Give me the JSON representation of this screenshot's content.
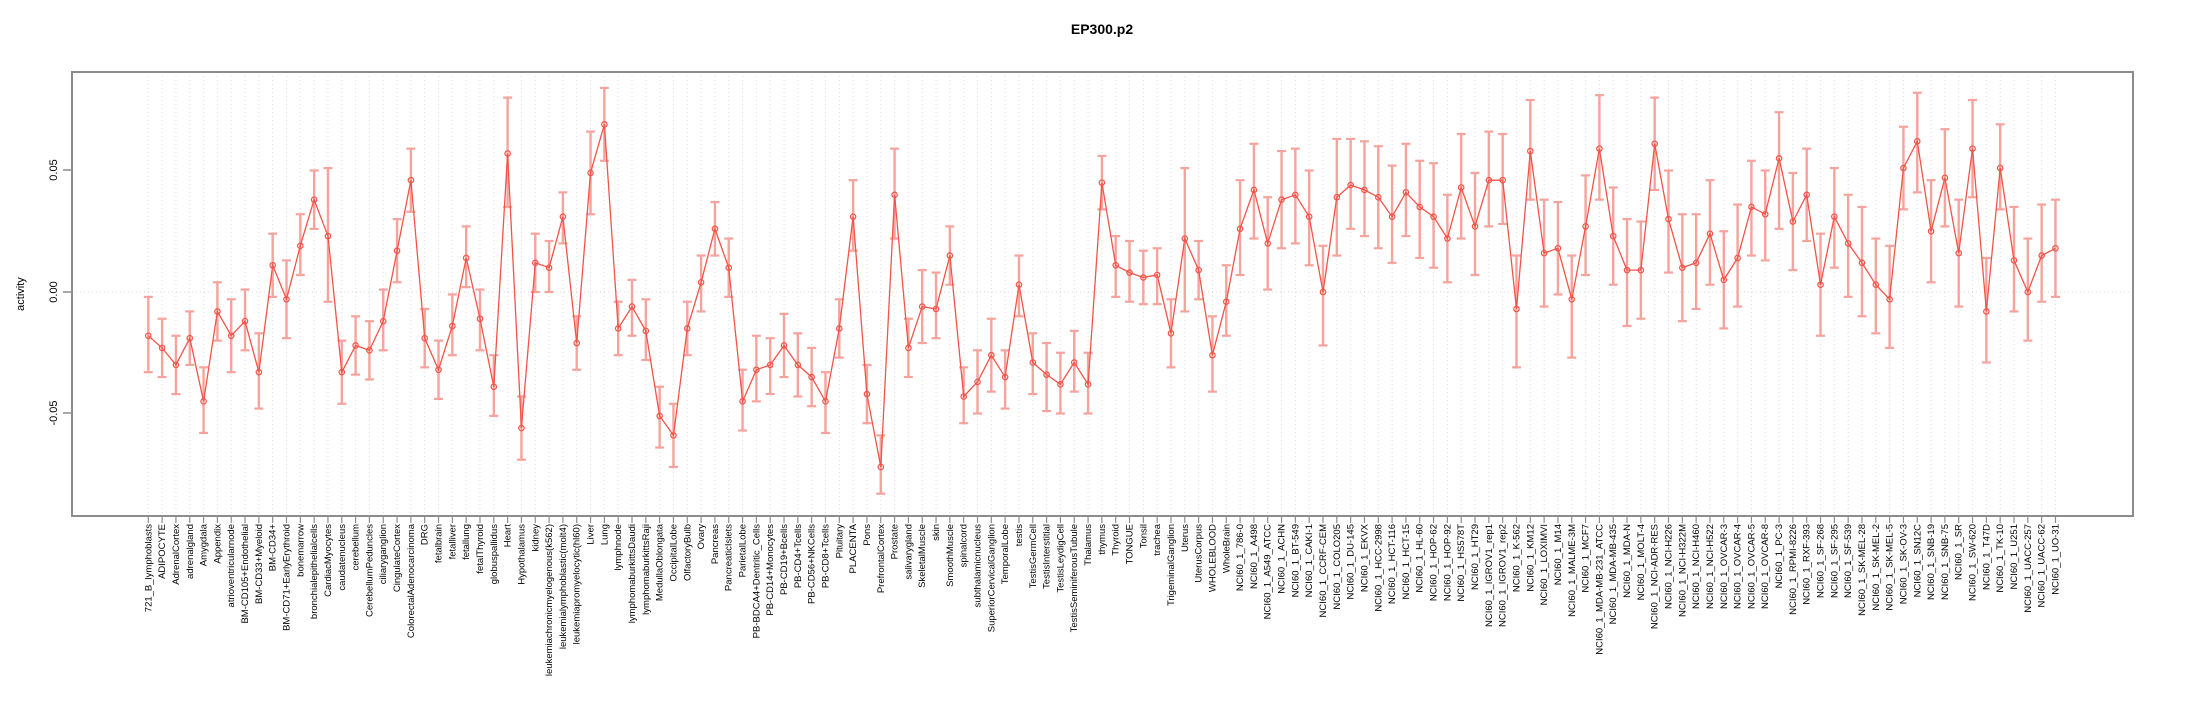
{
  "chart_data": {
    "type": "line",
    "title": "EP300.p2",
    "ylabel": "activity",
    "xlabel": "",
    "ylim": [
      -0.09,
      0.09
    ],
    "yticks": [
      -0.05,
      0.0,
      0.05
    ],
    "ytick_labels": [
      "-0.05",
      "0.00",
      "0.05"
    ],
    "grid": "vertical dashed gridline per category; dotted horizontal line at 0",
    "legend_position": "none",
    "series_color": "#f25449",
    "errorbar_color": "#f7a39d",
    "axis_color": "#8c8c8c",
    "gridline_color": "#dcdcdc",
    "categories": [
      "721_B_lymphoblasts",
      "ADIPOCYTE",
      "AdrenalCortex",
      "adrenalgland",
      "Amygdala",
      "Appendix",
      "atrioventricularnode",
      "BM-CD105+Endothelial",
      "BM-CD33+Myeloid",
      "BM-CD34+",
      "BM-CD71+EarlyErythroid",
      "bonemarrow",
      "bronchialepithelialcells",
      "CardiacMyocytes",
      "caudatenucleus",
      "cerebellum",
      "CerebellumPeduncles",
      "ciliaryganglion",
      "CingulateCortex",
      "ColorectalAdenocarcinoma",
      "DRG",
      "fetalbrain",
      "fetalliver",
      "fetallung",
      "fetalThyroid",
      "globuspallidus",
      "Heart",
      "Hypothalamus",
      "kidney",
      "leukemiachronicmyelogenous(k562)",
      "leukemialymphoblastic(molt4)",
      "leukemiapromyelocytic(hl60)",
      "Liver",
      "Lung",
      "lymphnode",
      "lymphomaburkittsDaudi",
      "lymphomaburkittsRaji",
      "MedullaOblongata",
      "OccipitalLobe",
      "OlfactoryBulb",
      "Ovary",
      "Pancreas",
      "PancreaticIslets",
      "ParietalLobe",
      "PB-BDCA4+Dentritic_Cells",
      "PB-CD14+Monocytes",
      "PB-CD19+Bcells",
      "PB-CD4+Tcells",
      "PB-CD56+NKCells",
      "PB-CD8+Tcells",
      "Pituitary",
      "PLACENTA",
      "Pons",
      "PrefrontalCortex",
      "Prostate",
      "salivarygland",
      "SkeletalMuscle",
      "skin",
      "SmoothMuscle",
      "spinalcord",
      "subthalamicnucleus",
      "SuperiorCervicalGanglion",
      "TemporalLobe",
      "testis",
      "TestisGermCell",
      "TestisInterstitial",
      "TestisLeydigCell",
      "TestisSeminiferousTubule",
      "Thalamus",
      "thymus",
      "Thyroid",
      "TONGUE",
      "Tonsil",
      "trachea",
      "TrigeminalGanglion",
      "Uterus",
      "UterusCorpus",
      "WHOLEBLOOD",
      "WholeBrain",
      "NCI60_1_786-0",
      "NCI60_1_A498",
      "NCI60_1_A549_ATCC",
      "NCI60_1_ACHN",
      "NCI60_1_BT-549",
      "NCI60_1_CAKI-1",
      "NCI60_1_CCRF-CEM",
      "NCI60_1_COLO205",
      "NCI60_1_DU-145",
      "NCI60_1_EKVX",
      "NCI60_1_HCC-2998",
      "NCI60_1_HCT-116",
      "NCI60_1_HCT-15",
      "NCI60_1_HL-60",
      "NCI60_1_HOP-62",
      "NCI60_1_HOP-92",
      "NCI60_1_HS578T",
      "NCI60_1_HT29",
      "NCI60_1_IGROV1_rep1",
      "NCI60_1_IGROV1_rep2",
      "NCI60_1_K-562",
      "NCI60_1_KM12",
      "NCI60_1_LOXIMVI",
      "NCI60_1_M14",
      "NCI60_1_MALME-3M",
      "NCI60_1_MCF7",
      "NCI60_1_MDA-MB-231_ATCC",
      "NCI60_1_MDA-MB-435",
      "NCI60_1_MDA-N",
      "NCI60_1_MOLT-4",
      "NCI60_1_NCI-ADR-RES",
      "NCI60_1_NCI-H226",
      "NCI60_1_NCI-H322M",
      "NCI60_1_NCI-H460",
      "NCI60_1_NCI-H522",
      "NCI60_1_OVCAR-3",
      "NCI60_1_OVCAR-4",
      "NCI60_1_OVCAR-5",
      "NCI60_1_OVCAR-8",
      "NCI60_1_PC-3",
      "NCI60_1_RPMI-8226",
      "NCI60_1_RXF-393",
      "NCI60_1_SF-268",
      "NCI60_1_SF-295",
      "NCI60_1_SF-539",
      "NCI60_1_SK-MEL-28",
      "NCI60_1_SK-MEL-2",
      "NCI60_1_SK-MEL-5",
      "NCI60_1_SK-OV-3",
      "NCI60_1_SN12C",
      "NCI60_1_SNB-19",
      "NCI60_1_SNB-75",
      "NCI60_1_SR",
      "NCI60_1_SW-620",
      "NCI60_1_T47D",
      "NCI60_1_TK-10",
      "NCI60_1_U251",
      "NCI60_1_UACC-257",
      "NCI60_1_UACC-62",
      "NCI60_1_UO-31"
    ],
    "values": [
      -0.018,
      -0.023,
      -0.03,
      -0.019,
      -0.045,
      -0.008,
      -0.018,
      -0.012,
      -0.033,
      0.011,
      -0.003,
      0.019,
      0.038,
      0.023,
      -0.033,
      -0.022,
      -0.024,
      -0.012,
      0.017,
      0.046,
      -0.019,
      -0.032,
      -0.014,
      0.014,
      -0.011,
      -0.039,
      0.057,
      -0.056,
      0.012,
      0.01,
      0.031,
      -0.021,
      0.049,
      0.069,
      -0.015,
      -0.006,
      -0.016,
      -0.051,
      -0.059,
      -0.015,
      0.004,
      0.026,
      0.01,
      -0.045,
      -0.032,
      -0.03,
      -0.022,
      -0.03,
      -0.035,
      -0.045,
      -0.015,
      0.031,
      -0.042,
      -0.072,
      0.04,
      -0.023,
      -0.006,
      -0.007,
      0.015,
      -0.043,
      -0.037,
      -0.026,
      -0.035,
      0.003,
      -0.029,
      -0.034,
      -0.038,
      -0.029,
      -0.038,
      0.045,
      0.011,
      0.008,
      0.006,
      0.007,
      -0.017,
      0.022,
      0.009,
      -0.026,
      -0.004,
      0.026,
      0.042,
      0.02,
      0.038,
      0.04,
      0.031,
      0.0,
      0.039,
      0.044,
      0.042,
      0.039,
      0.031,
      0.041,
      0.035,
      0.031,
      0.022,
      0.043,
      0.027,
      0.046,
      0.046,
      -0.007,
      0.058,
      0.016,
      0.018,
      -0.003,
      0.027,
      0.059,
      0.023,
      0.009,
      0.009,
      0.061,
      0.03,
      0.01,
      0.012,
      0.024,
      0.005,
      0.014,
      0.035,
      0.032,
      0.055,
      0.029,
      0.04,
      0.003,
      0.031,
      0.02,
      0.012,
      0.003,
      -0.003,
      0.051,
      0.062,
      0.025,
      0.047,
      0.016,
      0.059,
      -0.008,
      0.051,
      0.013,
      0.0,
      0.015,
      0.018
    ],
    "err_lo": [
      -0.033,
      -0.035,
      -0.042,
      -0.03,
      -0.058,
      -0.02,
      -0.033,
      -0.024,
      -0.048,
      -0.002,
      -0.019,
      0.007,
      0.026,
      -0.004,
      -0.046,
      -0.034,
      -0.036,
      -0.024,
      0.004,
      0.033,
      -0.031,
      -0.044,
      -0.026,
      0.002,
      -0.024,
      -0.051,
      0.035,
      -0.069,
      0.0,
      0.0,
      0.02,
      -0.032,
      0.032,
      0.054,
      -0.026,
      -0.018,
      -0.028,
      -0.064,
      -0.072,
      -0.026,
      -0.008,
      0.015,
      -0.002,
      -0.057,
      -0.045,
      -0.042,
      -0.035,
      -0.043,
      -0.047,
      -0.058,
      -0.027,
      0.017,
      -0.054,
      -0.083,
      0.022,
      -0.035,
      -0.021,
      -0.019,
      0.003,
      -0.054,
      -0.05,
      -0.041,
      -0.048,
      -0.01,
      -0.042,
      -0.049,
      -0.05,
      -0.041,
      -0.05,
      0.034,
      -0.002,
      -0.004,
      -0.005,
      -0.005,
      -0.031,
      -0.008,
      -0.003,
      -0.041,
      -0.018,
      0.007,
      0.022,
      0.001,
      0.018,
      0.02,
      0.011,
      -0.022,
      0.015,
      0.026,
      0.023,
      0.018,
      0.012,
      0.023,
      0.014,
      0.01,
      0.004,
      0.022,
      0.007,
      0.027,
      0.028,
      -0.031,
      0.038,
      -0.006,
      -0.001,
      -0.027,
      0.007,
      0.038,
      0.003,
      -0.014,
      -0.011,
      0.042,
      0.008,
      -0.012,
      -0.007,
      0.003,
      -0.015,
      -0.006,
      0.015,
      0.013,
      0.026,
      0.009,
      0.021,
      -0.018,
      0.01,
      -0.002,
      -0.01,
      -0.017,
      -0.023,
      0.034,
      0.041,
      0.004,
      0.027,
      -0.006,
      0.039,
      -0.029,
      0.034,
      -0.008,
      -0.02,
      -0.004,
      -0.002
    ],
    "err_hi": [
      -0.002,
      -0.011,
      -0.018,
      -0.008,
      -0.031,
      0.004,
      -0.003,
      0.001,
      -0.017,
      0.024,
      0.013,
      0.032,
      0.05,
      0.051,
      -0.02,
      -0.01,
      -0.012,
      0.001,
      0.03,
      0.059,
      -0.007,
      -0.02,
      -0.001,
      0.027,
      0.001,
      -0.026,
      0.08,
      -0.043,
      0.024,
      0.021,
      0.041,
      -0.01,
      0.066,
      0.084,
      -0.004,
      0.005,
      -0.003,
      -0.039,
      -0.046,
      -0.004,
      0.015,
      0.037,
      0.022,
      -0.032,
      -0.018,
      -0.019,
      -0.009,
      -0.017,
      -0.023,
      -0.033,
      -0.003,
      0.046,
      -0.03,
      -0.059,
      0.059,
      -0.011,
      0.009,
      0.008,
      0.027,
      -0.031,
      -0.024,
      -0.011,
      -0.024,
      0.015,
      -0.017,
      -0.021,
      -0.025,
      -0.016,
      -0.025,
      0.056,
      0.023,
      0.021,
      0.017,
      0.018,
      -0.003,
      0.051,
      0.021,
      -0.01,
      0.011,
      0.046,
      0.061,
      0.039,
      0.058,
      0.059,
      0.05,
      0.019,
      0.063,
      0.063,
      0.062,
      0.06,
      0.052,
      0.061,
      0.054,
      0.053,
      0.04,
      0.065,
      0.049,
      0.066,
      0.065,
      0.015,
      0.079,
      0.038,
      0.037,
      0.015,
      0.048,
      0.081,
      0.043,
      0.03,
      0.029,
      0.08,
      0.05,
      0.032,
      0.032,
      0.046,
      0.025,
      0.036,
      0.054,
      0.05,
      0.074,
      0.049,
      0.059,
      0.024,
      0.051,
      0.04,
      0.035,
      0.022,
      0.019,
      0.068,
      0.082,
      0.046,
      0.067,
      0.038,
      0.079,
      0.014,
      0.069,
      0.035,
      0.022,
      0.036,
      0.038
    ]
  }
}
